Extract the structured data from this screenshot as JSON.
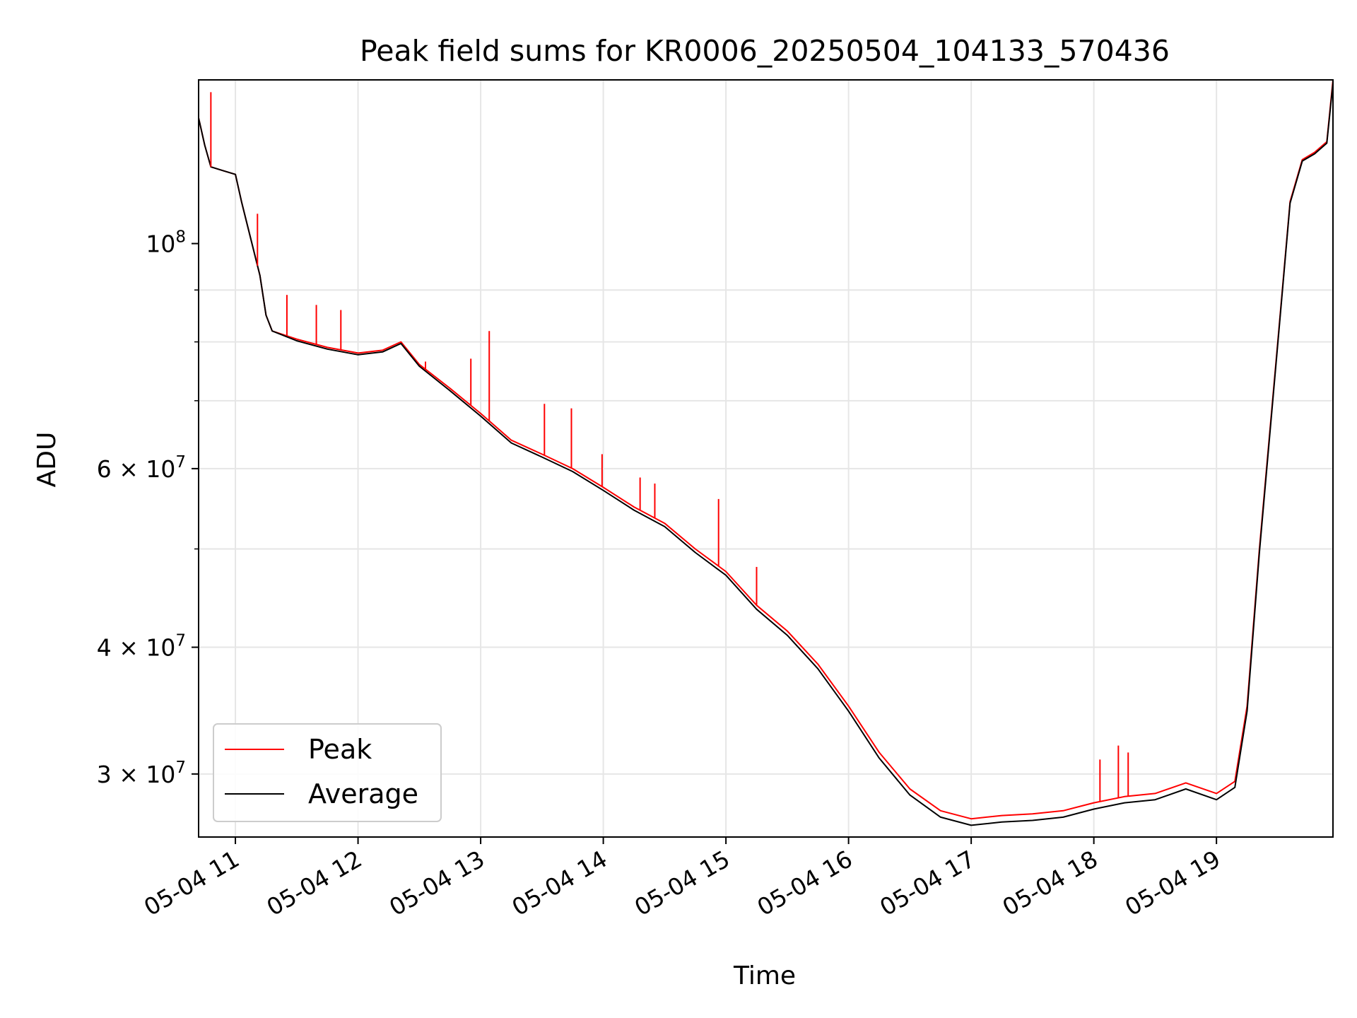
{
  "chart_data": {
    "type": "line",
    "title": "Peak field sums for KR0006_20250504_104133_570436",
    "xlabel": "Time",
    "ylabel": "ADU",
    "yscale": "log",
    "grid": true,
    "legend_position": "lower-left",
    "xlim": [
      10.7,
      19.95
    ],
    "ylim": [
      26000000,
      145000000
    ],
    "x_tick_values": [
      11,
      12,
      13,
      14,
      15,
      16,
      17,
      18,
      19
    ],
    "x_tick_labels": [
      "05-04 11",
      "05-04 12",
      "05-04 13",
      "05-04 14",
      "05-04 15",
      "05-04 16",
      "05-04 17",
      "05-04 18",
      "05-04 19"
    ],
    "y_ticks": [
      {
        "value": 100000000,
        "base": "10",
        "exp": "8"
      },
      {
        "value": 60000000,
        "base": "6 × 10",
        "exp": "7"
      },
      {
        "value": 40000000,
        "base": "4 × 10",
        "exp": "7"
      },
      {
        "value": 30000000,
        "base": "3 × 10",
        "exp": "7"
      }
    ],
    "x_unit": "hour of 2025-05-04",
    "series": [
      {
        "name": "Peak",
        "color": "#ff0000",
        "x": [
          10.7,
          10.75,
          10.8,
          10.9,
          11.0,
          11.05,
          11.1,
          11.2,
          11.25,
          11.3,
          11.5,
          11.75,
          12.0,
          12.2,
          12.35,
          12.5,
          12.75,
          13.0,
          13.25,
          13.5,
          13.75,
          14.0,
          14.25,
          14.5,
          14.75,
          15.0,
          15.25,
          15.5,
          15.75,
          16.0,
          16.25,
          16.5,
          16.75,
          17.0,
          17.25,
          17.5,
          17.75,
          18.0,
          18.25,
          18.5,
          18.75,
          19.0,
          19.15,
          19.25,
          19.35,
          19.5,
          19.6,
          19.7,
          19.8,
          19.9,
          19.95
        ],
        "y": [
          133000000,
          125000000,
          119000000,
          118000000,
          117000000,
          110000000,
          104000000,
          93000000,
          85000000,
          82000000,
          80500000,
          79000000,
          78000000,
          78500000,
          80000000,
          76000000,
          72000000,
          68000000,
          64000000,
          62000000,
          60000000,
          57500000,
          55000000,
          53000000,
          50000000,
          47500000,
          44000000,
          41500000,
          38500000,
          35000000,
          31500000,
          29000000,
          27600000,
          27100000,
          27300000,
          27400000,
          27600000,
          28100000,
          28500000,
          28700000,
          29400000,
          28700000,
          29500000,
          35000000,
          50000000,
          80000000,
          110000000,
          121000000,
          123000000,
          126000000,
          145000000
        ]
      },
      {
        "name": "Average",
        "color": "#000000",
        "x": [
          10.7,
          10.75,
          10.8,
          10.9,
          11.0,
          11.05,
          11.1,
          11.2,
          11.25,
          11.3,
          11.5,
          11.75,
          12.0,
          12.2,
          12.35,
          12.5,
          12.75,
          13.0,
          13.25,
          13.5,
          13.75,
          14.0,
          14.25,
          14.5,
          14.75,
          15.0,
          15.25,
          15.5,
          15.75,
          16.0,
          16.25,
          16.5,
          16.75,
          17.0,
          17.25,
          17.5,
          17.75,
          18.0,
          18.25,
          18.5,
          18.75,
          19.0,
          19.15,
          19.25,
          19.35,
          19.5,
          19.6,
          19.7,
          19.8,
          19.9,
          19.95
        ],
        "y": [
          133000000,
          125000000,
          119000000,
          118000000,
          117000000,
          110000000,
          104000000,
          93000000,
          85000000,
          82000000,
          80200000,
          78700000,
          77700000,
          78200000,
          79700000,
          75700000,
          71600000,
          67600000,
          63600000,
          61600000,
          59600000,
          57100000,
          54600000,
          52600000,
          49600000,
          47100000,
          43600000,
          41100000,
          38100000,
          34600000,
          31100000,
          28600000,
          27200000,
          26700000,
          26900000,
          27000000,
          27200000,
          27700000,
          28100000,
          28300000,
          29000000,
          28300000,
          29100000,
          34600000,
          49600000,
          79600000,
          109600000,
          120600000,
          122600000,
          125600000,
          144000000
        ]
      }
    ],
    "peak_spikes": [
      {
        "x": 10.8,
        "y": 141000000
      },
      {
        "x": 11.18,
        "y": 107000000
      },
      {
        "x": 11.42,
        "y": 89000000
      },
      {
        "x": 11.66,
        "y": 87000000
      },
      {
        "x": 11.86,
        "y": 86000000
      },
      {
        "x": 12.55,
        "y": 76500000
      },
      {
        "x": 12.92,
        "y": 77000000
      },
      {
        "x": 13.07,
        "y": 82000000
      },
      {
        "x": 13.52,
        "y": 69500000
      },
      {
        "x": 13.74,
        "y": 68800000
      },
      {
        "x": 13.99,
        "y": 62000000
      },
      {
        "x": 14.3,
        "y": 58800000
      },
      {
        "x": 14.42,
        "y": 58000000
      },
      {
        "x": 14.94,
        "y": 56000000
      },
      {
        "x": 15.25,
        "y": 48000000
      },
      {
        "x": 18.05,
        "y": 31000000
      },
      {
        "x": 18.2,
        "y": 32000000
      },
      {
        "x": 18.28,
        "y": 31500000
      }
    ],
    "legend": [
      {
        "label": "Peak",
        "color": "#ff0000"
      },
      {
        "label": "Average",
        "color": "#000000"
      }
    ]
  }
}
